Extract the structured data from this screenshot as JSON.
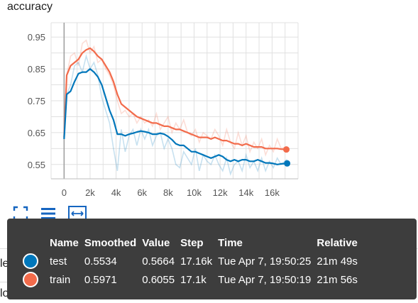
{
  "chart_data": {
    "type": "line",
    "title": "accuracy",
    "xlabel": "",
    "ylabel": "",
    "xlim": [
      -1000,
      18000
    ],
    "ylim": [
      0.505,
      0.995
    ],
    "x_ticks": [
      0,
      2000,
      4000,
      6000,
      8000,
      10000,
      12000,
      14000,
      16000
    ],
    "x_tick_labels": [
      "0",
      "2k",
      "4k",
      "6k",
      "8k",
      "10k",
      "12k",
      "14k",
      "16k"
    ],
    "y_ticks": [
      0.55,
      0.65,
      0.75,
      0.85,
      0.95
    ],
    "y_tick_labels": [
      "0.55",
      "0.65",
      "0.75",
      "0.85",
      "0.95"
    ],
    "grid": true,
    "series": [
      {
        "name": "train",
        "color": "#f26b4b",
        "raw_x": [
          0,
          200,
          500,
          800,
          1100,
          1400,
          1700,
          2000,
          2300,
          2600,
          2900,
          3200,
          3500,
          3800,
          4100,
          4400,
          4700,
          5000,
          5300,
          5600,
          5900,
          6200,
          6500,
          6800,
          7100,
          7400,
          7700,
          8000,
          8300,
          8600,
          8900,
          9200,
          9500,
          9800,
          10100,
          10400,
          10700,
          11000,
          11300,
          11600,
          11900,
          12200,
          12500,
          12800,
          13100,
          13400,
          13700,
          14000,
          14300,
          14600,
          14900,
          15200,
          15500,
          15800,
          16100,
          16400,
          16700,
          17100
        ],
        "raw_y": [
          0.64,
          0.83,
          0.89,
          0.9,
          0.86,
          0.93,
          0.94,
          0.9,
          0.92,
          0.87,
          0.88,
          0.85,
          0.83,
          0.8,
          0.75,
          0.71,
          0.72,
          0.7,
          0.71,
          0.68,
          0.7,
          0.68,
          0.69,
          0.67,
          0.71,
          0.66,
          0.68,
          0.7,
          0.65,
          0.68,
          0.66,
          0.69,
          0.65,
          0.64,
          0.66,
          0.62,
          0.65,
          0.64,
          0.63,
          0.66,
          0.64,
          0.61,
          0.66,
          0.62,
          0.6,
          0.65,
          0.61,
          0.64,
          0.59,
          0.62,
          0.6,
          0.63,
          0.58,
          0.61,
          0.59,
          0.63,
          0.6,
          0.6055
        ],
        "smoothed_x": [
          0,
          200,
          500,
          800,
          1100,
          1400,
          1700,
          2000,
          2300,
          2600,
          2900,
          3200,
          3500,
          3800,
          4100,
          4400,
          4700,
          5000,
          5300,
          5600,
          5900,
          6200,
          6500,
          6800,
          7100,
          7400,
          7700,
          8000,
          8300,
          8600,
          8900,
          9200,
          9500,
          9800,
          10100,
          10400,
          10700,
          11000,
          11300,
          11600,
          11900,
          12200,
          12500,
          12800,
          13100,
          13400,
          13700,
          14000,
          14300,
          14600,
          14900,
          15200,
          15500,
          15800,
          16100,
          16400,
          16700,
          17100
        ],
        "smoothed_y": [
          0.635,
          0.83,
          0.86,
          0.87,
          0.88,
          0.9,
          0.91,
          0.915,
          0.905,
          0.89,
          0.88,
          0.86,
          0.84,
          0.81,
          0.77,
          0.74,
          0.73,
          0.72,
          0.71,
          0.7,
          0.695,
          0.69,
          0.685,
          0.68,
          0.68,
          0.675,
          0.67,
          0.67,
          0.665,
          0.66,
          0.66,
          0.655,
          0.65,
          0.645,
          0.64,
          0.635,
          0.635,
          0.635,
          0.63,
          0.635,
          0.63,
          0.625,
          0.625,
          0.62,
          0.615,
          0.615,
          0.61,
          0.615,
          0.61,
          0.605,
          0.605,
          0.605,
          0.6,
          0.6,
          0.6,
          0.6,
          0.598,
          0.5971
        ]
      },
      {
        "name": "test",
        "color": "#0077bb",
        "raw_x": [
          0,
          200,
          500,
          800,
          1100,
          1400,
          1700,
          2000,
          2300,
          2600,
          2900,
          3200,
          3500,
          3800,
          4100,
          4400,
          4700,
          5000,
          5300,
          5600,
          5900,
          6200,
          6500,
          6800,
          7100,
          7400,
          7700,
          8000,
          8300,
          8600,
          8900,
          9200,
          9500,
          9800,
          10100,
          10400,
          10700,
          11000,
          11300,
          11600,
          11900,
          12200,
          12500,
          12800,
          13100,
          13400,
          13700,
          14000,
          14300,
          14600,
          14900,
          15200,
          15500,
          15800,
          16100,
          16400,
          16700,
          17160
        ],
        "raw_y": [
          0.63,
          0.77,
          0.8,
          0.86,
          0.87,
          0.84,
          0.89,
          0.85,
          0.87,
          0.83,
          0.76,
          0.72,
          0.68,
          0.6,
          0.53,
          0.66,
          0.59,
          0.64,
          0.66,
          0.61,
          0.66,
          0.63,
          0.66,
          0.61,
          0.64,
          0.65,
          0.6,
          0.63,
          0.6,
          0.55,
          0.54,
          0.59,
          0.57,
          0.55,
          0.6,
          0.53,
          0.58,
          0.56,
          0.55,
          0.58,
          0.55,
          0.53,
          0.57,
          0.52,
          0.55,
          0.56,
          0.53,
          0.58,
          0.54,
          0.56,
          0.53,
          0.57,
          0.53,
          0.56,
          0.54,
          0.57,
          0.55,
          0.5664
        ],
        "smoothed_x": [
          0,
          200,
          500,
          800,
          1100,
          1400,
          1700,
          2000,
          2300,
          2600,
          2900,
          3200,
          3500,
          3800,
          4100,
          4400,
          4700,
          5000,
          5300,
          5600,
          5900,
          6200,
          6500,
          6800,
          7100,
          7400,
          7700,
          8000,
          8300,
          8600,
          8900,
          9200,
          9500,
          9800,
          10100,
          10400,
          10700,
          11000,
          11300,
          11600,
          11900,
          12200,
          12500,
          12800,
          13100,
          13400,
          13700,
          14000,
          14300,
          14600,
          14900,
          15200,
          15500,
          15800,
          16100,
          16400,
          16700,
          17160
        ],
        "smoothed_y": [
          0.63,
          0.77,
          0.78,
          0.81,
          0.835,
          0.84,
          0.84,
          0.85,
          0.84,
          0.825,
          0.8,
          0.76,
          0.72,
          0.69,
          0.645,
          0.645,
          0.64,
          0.645,
          0.648,
          0.652,
          0.655,
          0.653,
          0.65,
          0.645,
          0.645,
          0.648,
          0.645,
          0.638,
          0.628,
          0.615,
          0.61,
          0.61,
          0.6,
          0.59,
          0.59,
          0.585,
          0.58,
          0.575,
          0.57,
          0.575,
          0.58,
          0.575,
          0.565,
          0.56,
          0.565,
          0.56,
          0.565,
          0.565,
          0.56,
          0.56,
          0.565,
          0.56,
          0.555,
          0.555,
          0.553,
          0.55,
          0.552,
          0.5534
        ]
      }
    ]
  },
  "tooltip": {
    "headers": {
      "name": "Name",
      "smoothed": "Smoothed",
      "value": "Value",
      "step": "Step",
      "time": "Time",
      "relative": "Relative"
    },
    "rows": [
      {
        "name": "test",
        "color": "#0077bb",
        "smoothed": "0.5534",
        "value": "0.5664",
        "step": "17.16k",
        "time": "Tue Apr 7, 19:50:25",
        "relative": "21m 49s"
      },
      {
        "name": "train",
        "color": "#f26b4b",
        "smoothed": "0.5971",
        "value": "0.6055",
        "step": "17.1k",
        "time": "Tue Apr 7, 19:50:19",
        "relative": "21m 56s"
      }
    ]
  },
  "sections": {
    "learning_rate": "learning_rate",
    "loss": "loss"
  },
  "colors": {
    "tooltip_bg": "#3d3d3d",
    "icon_blue": "#1565c0",
    "grid": "#e0e0e0"
  },
  "icons": [
    "fullscreen-icon",
    "menu-lines-icon",
    "fit-domain-icon"
  ]
}
